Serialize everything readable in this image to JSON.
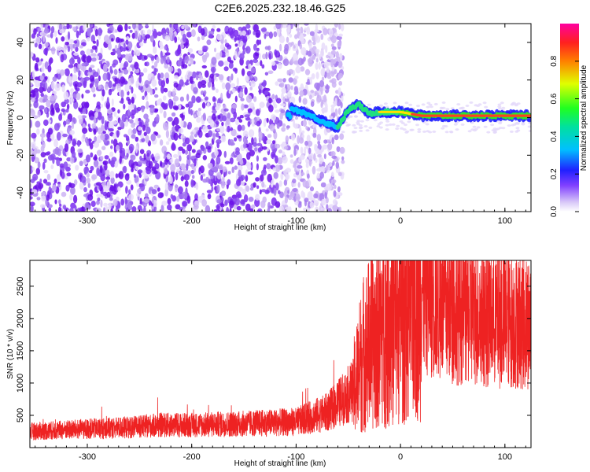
{
  "title": "C2E6.2025.232.18.46.G25",
  "chart_data": [
    {
      "type": "heatmap",
      "xlabel": "Height of straight line (km)",
      "ylabel": "Frequency (Hz)",
      "xlim": [
        -355,
        125
      ],
      "ylim": [
        -50,
        50
      ],
      "xticks": [
        -300,
        -200,
        -100,
        0,
        100
      ],
      "yticks": [
        -40,
        -20,
        0,
        20,
        40
      ],
      "colorbar": {
        "label": "Normalized spectral amplitude",
        "range": [
          0,
          1
        ],
        "ticks": [
          "0.0",
          "0.2",
          "0.4",
          "0.6",
          "0.8"
        ]
      },
      "signal_trace": [
        {
          "x": -105,
          "y": 5
        },
        {
          "x": -90,
          "y": 2
        },
        {
          "x": -75,
          "y": -2
        },
        {
          "x": -60,
          "y": -5
        },
        {
          "x": -50,
          "y": 4
        },
        {
          "x": -40,
          "y": 7
        },
        {
          "x": -30,
          "y": 2
        },
        {
          "x": -20,
          "y": 3
        },
        {
          "x": 0,
          "y": 3
        },
        {
          "x": 20,
          "y": 1
        },
        {
          "x": 60,
          "y": 1
        },
        {
          "x": 120,
          "y": 1
        }
      ]
    },
    {
      "type": "line",
      "xlabel": "Height of straight line (km)",
      "ylabel": "SNR (10 * v/v)",
      "xlim": [
        -355,
        125
      ],
      "ylim": [
        0,
        2900
      ],
      "xticks": [
        -300,
        -200,
        -100,
        0,
        100
      ],
      "yticks": [
        500,
        1000,
        1500,
        2000,
        2500
      ],
      "series": [
        {
          "name": "SNR",
          "color": "#ee2222",
          "x": [
            -355,
            -300,
            -250,
            -230,
            -200,
            -150,
            -100,
            -70,
            -55,
            -45,
            -35,
            -20,
            -10,
            0,
            10,
            20,
            30,
            50,
            80,
            100,
            125
          ],
          "y": [
            250,
            290,
            320,
            350,
            350,
            370,
            400,
            550,
            750,
            900,
            1500,
            1800,
            2000,
            2100,
            2400,
            2550,
            2350,
            2150,
            2050,
            2000,
            1950
          ]
        }
      ]
    }
  ]
}
